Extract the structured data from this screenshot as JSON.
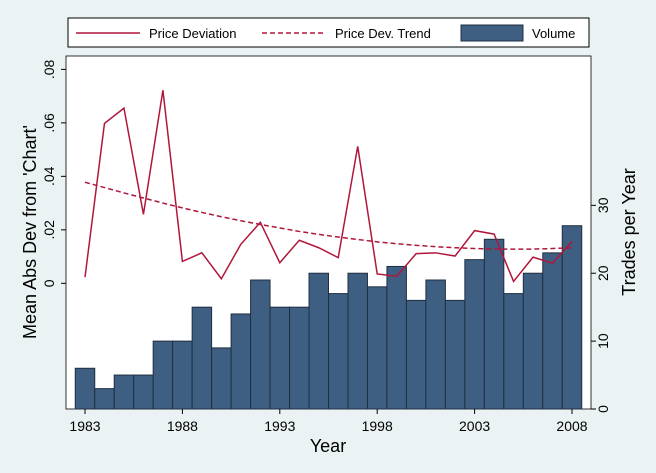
{
  "chart_data": {
    "type": "bar+line",
    "title": "",
    "xlabel": "Year",
    "ylabel_left": "Mean Abs Dev from 'Chart'",
    "ylabel_right": "Trades per Year",
    "x_tick_labels": [
      "1983",
      "1988",
      "1993",
      "1998",
      "2003",
      "2008"
    ],
    "x_ticks": [
      1983,
      1988,
      1993,
      1998,
      2003,
      2008
    ],
    "x_range": [
      1983,
      2008
    ],
    "left_tick_labels": [
      "0",
      ".02",
      ".04",
      ".06",
      ".08"
    ],
    "left_ticks": [
      0,
      0.02,
      0.04,
      0.06,
      0.08
    ],
    "ylim_left": [
      -0.047,
      0.085
    ],
    "right_tick_labels": [
      "0",
      "10",
      "20",
      "30"
    ],
    "right_ticks": [
      0,
      10,
      20,
      30
    ],
    "ylim_right": [
      0,
      52
    ],
    "years": [
      1983,
      1984,
      1985,
      1986,
      1987,
      1988,
      1989,
      1990,
      1991,
      1992,
      1993,
      1994,
      1995,
      1996,
      1997,
      1998,
      1999,
      2000,
      2001,
      2002,
      2003,
      2004,
      2005,
      2006,
      2007,
      2008
    ],
    "series": [
      {
        "name": "Price Deviation",
        "axis": "left",
        "style": "solid",
        "color": "#b0173a",
        "values": [
          0.0023,
          0.0598,
          0.0655,
          0.0258,
          0.0722,
          0.0082,
          0.0114,
          0.0017,
          0.0146,
          0.0228,
          0.0077,
          0.0161,
          0.0133,
          0.0096,
          0.0512,
          0.0035,
          0.0026,
          0.0111,
          0.0114,
          0.0102,
          0.0197,
          0.0184,
          0.0007,
          0.0098,
          0.0075,
          0.0157
        ]
      },
      {
        "name": "Price Dev. Trend",
        "axis": "left",
        "style": "dashed",
        "color": "#b0173a",
        "values": [
          0.0378,
          0.0358,
          0.0338,
          0.0319,
          0.03,
          0.0282,
          0.0265,
          0.0249,
          0.0234,
          0.022,
          0.0207,
          0.0194,
          0.0183,
          0.0173,
          0.0164,
          0.0155,
          0.0148,
          0.0142,
          0.0137,
          0.0133,
          0.013,
          0.0128,
          0.0128,
          0.0128,
          0.013,
          0.0133
        ]
      },
      {
        "name": "Volume",
        "axis": "right",
        "style": "bar",
        "color": "#3f5f82",
        "values": [
          6,
          3,
          5,
          5,
          10,
          10,
          15,
          9,
          14,
          19,
          15,
          15,
          20,
          17,
          20,
          18,
          21,
          16,
          19,
          16,
          22,
          25,
          17,
          20,
          23,
          27
        ]
      }
    ],
    "legend": [
      "Price Deviation",
      "Price Dev. Trend",
      "Volume"
    ],
    "legend_position": "top",
    "grid": false
  }
}
